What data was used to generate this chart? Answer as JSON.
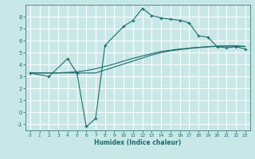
{
  "bg_color": "#c8e8e8",
  "grid_color": "#ffffff",
  "line_color": "#1a6b6b",
  "xlabel": "Humidex (Indice chaleur)",
  "xlim": [
    -0.5,
    23.5
  ],
  "ylim": [
    -1.5,
    9.0
  ],
  "xticks": [
    0,
    1,
    2,
    3,
    4,
    5,
    6,
    7,
    8,
    9,
    10,
    11,
    12,
    13,
    14,
    15,
    16,
    17,
    18,
    19,
    20,
    21,
    22,
    23
  ],
  "yticks": [
    -1,
    0,
    1,
    2,
    3,
    4,
    5,
    6,
    7,
    8
  ],
  "series1_x": [
    0,
    1,
    2,
    3,
    4,
    5,
    6,
    7,
    8,
    9,
    10,
    11,
    12,
    13,
    14,
    15,
    16,
    17,
    18,
    19,
    20,
    21,
    22,
    23
  ],
  "series1_y": [
    3.3,
    3.3,
    3.3,
    3.3,
    3.3,
    3.3,
    3.3,
    3.3,
    3.55,
    3.8,
    4.05,
    4.3,
    4.55,
    4.8,
    5.0,
    5.15,
    5.25,
    5.35,
    5.42,
    5.48,
    5.52,
    5.55,
    5.55,
    5.5
  ],
  "series2_x": [
    0,
    1,
    2,
    3,
    4,
    5,
    6,
    7,
    8,
    9,
    10,
    11,
    12,
    13,
    14,
    15,
    16,
    17,
    18,
    19,
    20,
    21,
    22,
    23
  ],
  "series2_y": [
    3.3,
    3.3,
    3.3,
    3.3,
    3.35,
    3.4,
    3.5,
    3.65,
    3.85,
    4.05,
    4.3,
    4.52,
    4.72,
    4.92,
    5.1,
    5.2,
    5.3,
    5.38,
    5.44,
    5.5,
    5.54,
    5.57,
    5.57,
    5.52
  ],
  "series3_x": [
    0,
    2,
    4,
    5,
    6,
    7,
    8,
    10,
    11,
    12,
    13,
    14,
    15,
    16,
    17,
    18,
    19,
    20,
    21,
    22,
    23
  ],
  "series3_y": [
    3.3,
    3.0,
    4.5,
    3.3,
    -1.2,
    -0.5,
    5.6,
    7.2,
    7.7,
    8.7,
    8.1,
    7.9,
    7.8,
    7.7,
    7.5,
    6.4,
    6.3,
    5.5,
    5.4,
    5.5,
    5.3
  ],
  "marker": "+"
}
